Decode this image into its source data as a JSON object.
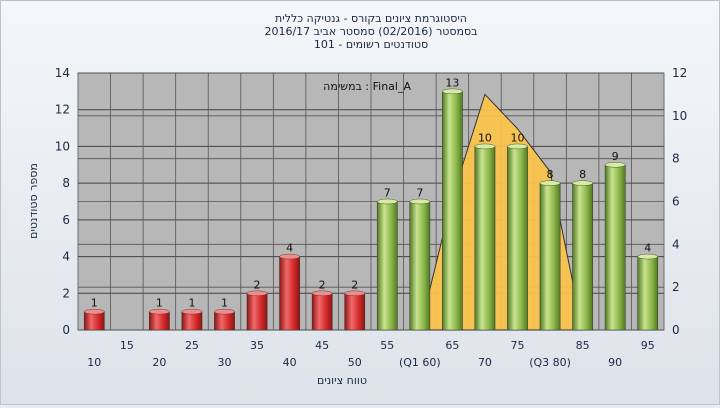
{
  "chart_data": {
    "type": "bar",
    "title_lines": [
      "היסטוגרמת ציונים בקורס - גנטיקה כללית",
      "בסמסטר  (02/2016)  סמסטר אביב 2016/17",
      "סטודנטים רשומים - 101"
    ],
    "annotation": "במשימה : Final_A",
    "xlabel": "טווח ציונים",
    "ylabel": "מספר סטודנטים",
    "categories": [
      "10",
      "15",
      "20",
      "25",
      "30",
      "35",
      "40",
      "45",
      "50",
      "55",
      "60",
      "65",
      "70",
      "75",
      "80",
      "85",
      "90",
      "95"
    ],
    "category_labels": [
      "10",
      "15",
      "20",
      "25",
      "30",
      "35",
      "40",
      "45",
      "50",
      "55",
      "(Q1 60)",
      "65",
      "70",
      "75",
      "(Q3 80)",
      "85",
      "90",
      "95"
    ],
    "values": [
      1,
      0,
      1,
      1,
      1,
      2,
      4,
      2,
      2,
      7,
      7,
      13,
      10,
      10,
      8,
      8,
      9,
      4
    ],
    "data_labels": [
      "1",
      "",
      "1",
      "1",
      "1",
      "2",
      "4",
      "2",
      "2",
      "7",
      "7",
      "13",
      "10",
      "10",
      "8",
      "8",
      "9",
      "4"
    ],
    "bar_colors": [
      "red",
      "red",
      "red",
      "red",
      "red",
      "red",
      "red",
      "red",
      "red",
      "green",
      "green",
      "green",
      "green",
      "green",
      "green",
      "green",
      "green",
      "green"
    ],
    "left_axis": {
      "min": 0,
      "max": 14,
      "ticks": [
        0,
        2,
        4,
        6,
        8,
        10,
        12,
        14
      ]
    },
    "right_axis": {
      "min": 0,
      "max": 12,
      "ticks": [
        0,
        2,
        4,
        6,
        8,
        10,
        12
      ]
    },
    "area_series": {
      "x": [
        "60",
        "65",
        "70",
        "75",
        "80",
        "85"
      ],
      "values": [
        0,
        6.2,
        11.0,
        9.4,
        7.4,
        0
      ]
    },
    "grid": true,
    "colors": {
      "red": "#d42a2a",
      "green": "#8cb64a",
      "area": "#f9c24c",
      "plot_bg": "#b7b7b7"
    }
  }
}
